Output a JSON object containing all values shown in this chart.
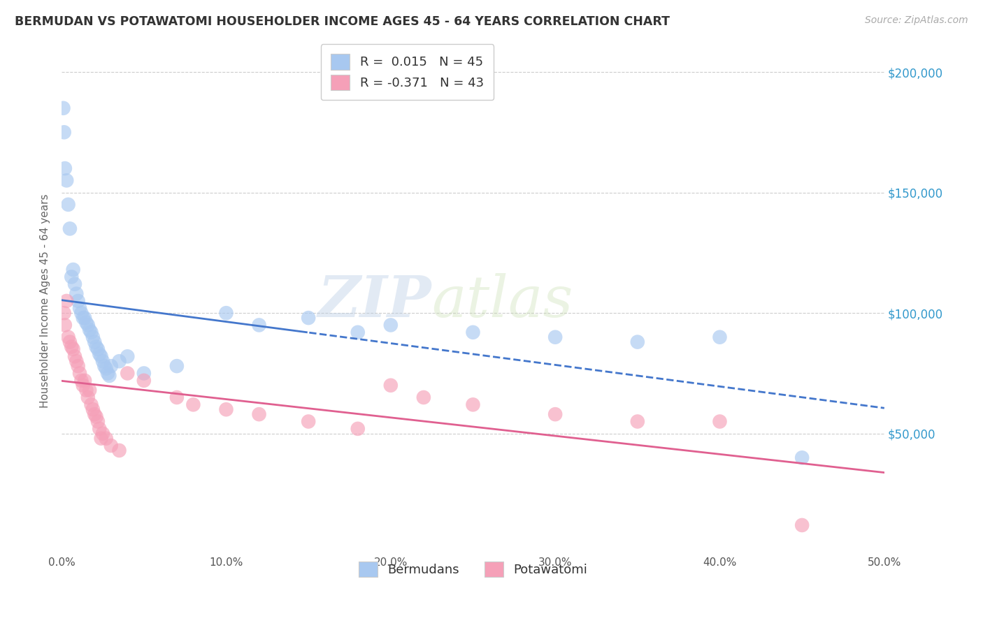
{
  "title": "BERMUDAN VS POTAWATOMI HOUSEHOLDER INCOME AGES 45 - 64 YEARS CORRELATION CHART",
  "source": "Source: ZipAtlas.com",
  "ylabel": "Householder Income Ages 45 - 64 years",
  "xlabel_ticks": [
    "0.0%",
    "10.0%",
    "20.0%",
    "30.0%",
    "40.0%",
    "50.0%"
  ],
  "xlabel_vals": [
    0.0,
    10.0,
    20.0,
    30.0,
    40.0,
    50.0
  ],
  "right_ytick_labels": [
    "$50,000",
    "$100,000",
    "$150,000",
    "$200,000"
  ],
  "right_ytick_vals": [
    50000,
    100000,
    150000,
    200000
  ],
  "bermuda_R": 0.015,
  "bermuda_N": 45,
  "potawatomi_R": -0.371,
  "potawatomi_N": 43,
  "bermuda_color": "#a8c8f0",
  "bermuda_line_color": "#4477cc",
  "potawatomi_color": "#f5a0b8",
  "potawatomi_line_color": "#e06090",
  "legend_label_bermuda": "Bermudans",
  "legend_label_potawatomi": "Potawatomi",
  "background_color": "#ffffff",
  "grid_color": "#cccccc",
  "watermark_zip": "ZIP",
  "watermark_atlas": "atlas",
  "bermuda_x": [
    0.1,
    0.15,
    0.2,
    0.3,
    0.4,
    0.5,
    0.6,
    0.7,
    0.8,
    0.9,
    1.0,
    1.1,
    1.2,
    1.3,
    1.4,
    1.5,
    1.6,
    1.7,
    1.8,
    1.9,
    2.0,
    2.1,
    2.2,
    2.3,
    2.4,
    2.5,
    2.6,
    2.7,
    2.8,
    3.0,
    3.5,
    4.0,
    5.0,
    7.0,
    10.0,
    12.0,
    15.0,
    18.0,
    20.0,
    25.0,
    30.0,
    35.0,
    40.0,
    45.0,
    2.9
  ],
  "bermuda_y": [
    185000,
    175000,
    160000,
    155000,
    145000,
    135000,
    115000,
    118000,
    112000,
    108000,
    105000,
    102000,
    100000,
    98000,
    98000,
    96000,
    95000,
    93000,
    92000,
    90000,
    88000,
    86000,
    85000,
    83000,
    82000,
    80000,
    78000,
    77000,
    75000,
    78000,
    80000,
    82000,
    75000,
    78000,
    100000,
    95000,
    98000,
    92000,
    95000,
    92000,
    90000,
    88000,
    90000,
    40000,
    74000
  ],
  "potawatomi_x": [
    0.2,
    0.3,
    0.4,
    0.5,
    0.6,
    0.7,
    0.8,
    0.9,
    1.0,
    1.1,
    1.2,
    1.3,
    1.4,
    1.5,
    1.6,
    1.7,
    1.8,
    1.9,
    2.0,
    2.1,
    2.2,
    2.3,
    2.5,
    2.7,
    3.0,
    3.5,
    4.0,
    5.0,
    7.0,
    8.0,
    10.0,
    12.0,
    15.0,
    18.0,
    20.0,
    22.0,
    25.0,
    30.0,
    35.0,
    40.0,
    45.0,
    2.4,
    0.15
  ],
  "potawatomi_y": [
    95000,
    105000,
    90000,
    88000,
    86000,
    85000,
    82000,
    80000,
    78000,
    75000,
    72000,
    70000,
    72000,
    68000,
    65000,
    68000,
    62000,
    60000,
    58000,
    57000,
    55000,
    52000,
    50000,
    48000,
    45000,
    43000,
    75000,
    72000,
    65000,
    62000,
    60000,
    58000,
    55000,
    52000,
    70000,
    65000,
    62000,
    58000,
    55000,
    55000,
    12000,
    48000,
    100000
  ]
}
